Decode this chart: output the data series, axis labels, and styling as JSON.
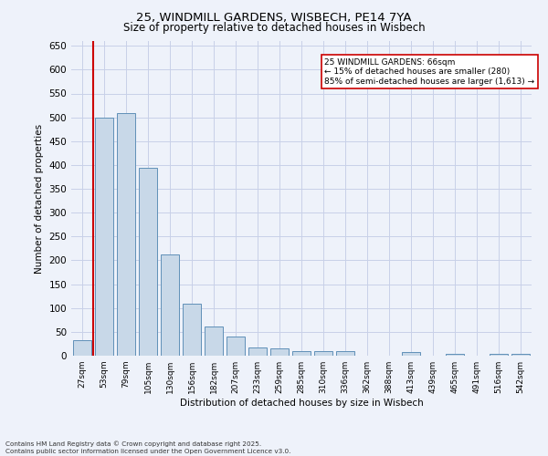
{
  "title_line1": "25, WINDMILL GARDENS, WISBECH, PE14 7YA",
  "title_line2": "Size of property relative to detached houses in Wisbech",
  "xlabel": "Distribution of detached houses by size in Wisbech",
  "ylabel": "Number of detached properties",
  "categories": [
    "27sqm",
    "53sqm",
    "79sqm",
    "105sqm",
    "130sqm",
    "156sqm",
    "182sqm",
    "207sqm",
    "233sqm",
    "259sqm",
    "285sqm",
    "310sqm",
    "336sqm",
    "362sqm",
    "388sqm",
    "413sqm",
    "439sqm",
    "465sqm",
    "491sqm",
    "516sqm",
    "542sqm"
  ],
  "values": [
    33,
    500,
    508,
    395,
    212,
    110,
    62,
    40,
    18,
    15,
    10,
    9,
    9,
    0,
    0,
    7,
    0,
    4,
    0,
    3,
    4
  ],
  "bar_color": "#c8d8e8",
  "bar_edge_color": "#6090b8",
  "annotation_text": "25 WINDMILL GARDENS: 66sqm\n← 15% of detached houses are smaller (280)\n85% of semi-detached houses are larger (1,613) →",
  "vline_x": 0.5,
  "vline_color": "#cc0000",
  "annotation_box_color": "#ffffff",
  "annotation_box_edge": "#cc0000",
  "ylim": [
    0,
    660
  ],
  "yticks": [
    0,
    50,
    100,
    150,
    200,
    250,
    300,
    350,
    400,
    450,
    500,
    550,
    600,
    650
  ],
  "footer_line1": "Contains HM Land Registry data © Crown copyright and database right 2025.",
  "footer_line2": "Contains public sector information licensed under the Open Government Licence v3.0.",
  "background_color": "#eef2fa",
  "grid_color": "#c8d0e8"
}
